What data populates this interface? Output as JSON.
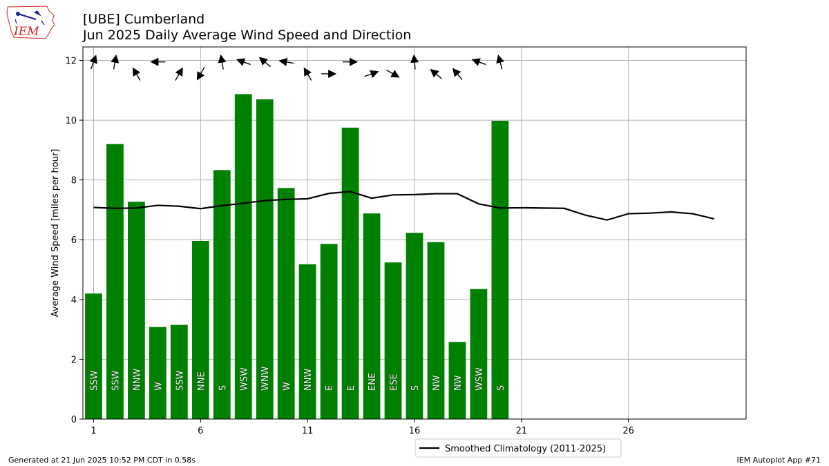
{
  "header": {
    "title": "[UBE] Cumberland",
    "subtitle": "Jun 2025 Daily Average Wind Speed and Direction"
  },
  "logo": {
    "text": "IEM"
  },
  "footer": {
    "generated": "Generated at 21 Jun 2025 10:52 PM CDT in 0.58s",
    "app": "IEM Autoplot App #71"
  },
  "colors": {
    "bar": "#008000",
    "climatology": "#000000",
    "grid": "#b0b0b0",
    "logo_red": "#cc2222",
    "logo_blue": "#1a1aa8"
  },
  "chart_data": {
    "type": "bar",
    "ylabel": "Average Wind Speed [miles per hour]",
    "xlim": [
      0.5,
      31.5
    ],
    "ylim": [
      0,
      12.45
    ],
    "xticks": [
      1,
      6,
      11,
      16,
      21,
      26
    ],
    "yticks": [
      0,
      2,
      4,
      6,
      8,
      10,
      12
    ],
    "grid": true,
    "legend_position": "below",
    "days": [
      1,
      2,
      3,
      4,
      5,
      6,
      7,
      8,
      9,
      10,
      11,
      12,
      13,
      14,
      15,
      16,
      17,
      18,
      19,
      20
    ],
    "values": [
      4.2,
      9.2,
      7.27,
      3.08,
      3.15,
      5.96,
      8.33,
      10.87,
      10.7,
      7.73,
      5.18,
      5.86,
      9.75,
      6.88,
      5.24,
      6.23,
      5.92,
      2.58,
      4.35,
      9.98
    ],
    "directions": [
      "SSW",
      "SSW",
      "NNW",
      "W",
      "SSW",
      "NNE",
      "S",
      "WSW",
      "WNW",
      "W",
      "NNW",
      "E",
      "E",
      "ENE",
      "ESE",
      "S",
      "NW",
      "NW",
      "WSW",
      "S"
    ],
    "arrow_angles_deg": [
      20,
      10,
      330,
      270,
      30,
      210,
      350,
      290,
      310,
      280,
      330,
      90,
      90,
      70,
      120,
      355,
      310,
      320,
      290,
      345
    ],
    "climatology": {
      "name": "Smoothed Climatology (2011-2025)",
      "x": [
        1,
        2,
        3,
        4,
        5,
        6,
        7,
        8,
        9,
        10,
        11,
        12,
        13,
        14,
        15,
        16,
        17,
        18,
        19,
        20,
        21,
        22,
        23,
        24,
        25,
        26,
        27,
        28,
        29,
        30
      ],
      "y": [
        7.08,
        7.05,
        7.06,
        7.15,
        7.12,
        7.04,
        7.14,
        7.22,
        7.31,
        7.35,
        7.37,
        7.55,
        7.61,
        7.39,
        7.5,
        7.51,
        7.54,
        7.54,
        7.2,
        7.06,
        7.07,
        7.06,
        7.05,
        6.82,
        6.66,
        6.87,
        6.89,
        6.93,
        6.87,
        6.7
      ]
    }
  }
}
